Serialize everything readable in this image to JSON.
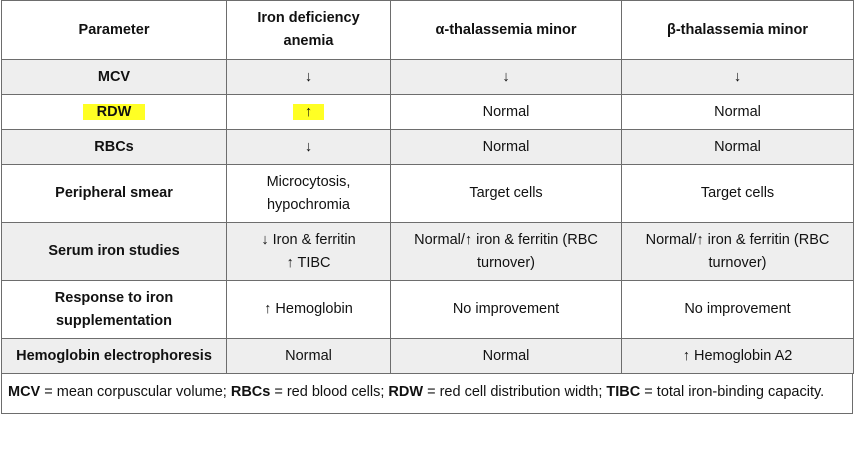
{
  "table": {
    "headers": [
      "Parameter",
      "Iron deficiency anemia",
      "α-thalassemia minor",
      "β-thalassemia minor"
    ],
    "rows": [
      {
        "param": "MCV",
        "ida": "↓",
        "alpha": "↓",
        "beta": "↓"
      },
      {
        "param": "RDW",
        "ida": "↑",
        "alpha": "Normal",
        "beta": "Normal"
      },
      {
        "param": "RBCs",
        "ida": "↓",
        "alpha": "Normal",
        "beta": "Normal"
      },
      {
        "param": "Peripheral smear",
        "ida": "Microcytosis, hypochromia",
        "alpha": "Target cells",
        "beta": "Target cells"
      },
      {
        "param": "Serum iron studies",
        "ida_line1": "↓ Iron & ferritin",
        "ida_line2": "↑ TIBC",
        "alpha": "Normal/↑ iron & ferritin (RBC turnover)",
        "beta": "Normal/↑ iron & ferritin (RBC turnover)"
      },
      {
        "param": "Response to iron supplementation",
        "ida": "↑ Hemoglobin",
        "alpha": "No improvement",
        "beta": "No improvement"
      },
      {
        "param": "Hemoglobin electrophoresis",
        "ida": "Normal",
        "alpha": "Normal",
        "beta": "↑ Hemoglobin A2"
      }
    ]
  },
  "footnote": {
    "items": [
      {
        "abbr": "MCV",
        "def": " = mean corpuscular volume; "
      },
      {
        "abbr": "RBCs",
        "def": " = red blood cells; "
      },
      {
        "abbr": "RDW",
        "def": " = red cell distribution width; "
      },
      {
        "abbr": "TIBC",
        "def": " = total iron-binding capacity."
      }
    ]
  },
  "colors": {
    "highlight": "#ffff24",
    "row_shade": "#eeeeee",
    "border": "#6d6d6d"
  }
}
